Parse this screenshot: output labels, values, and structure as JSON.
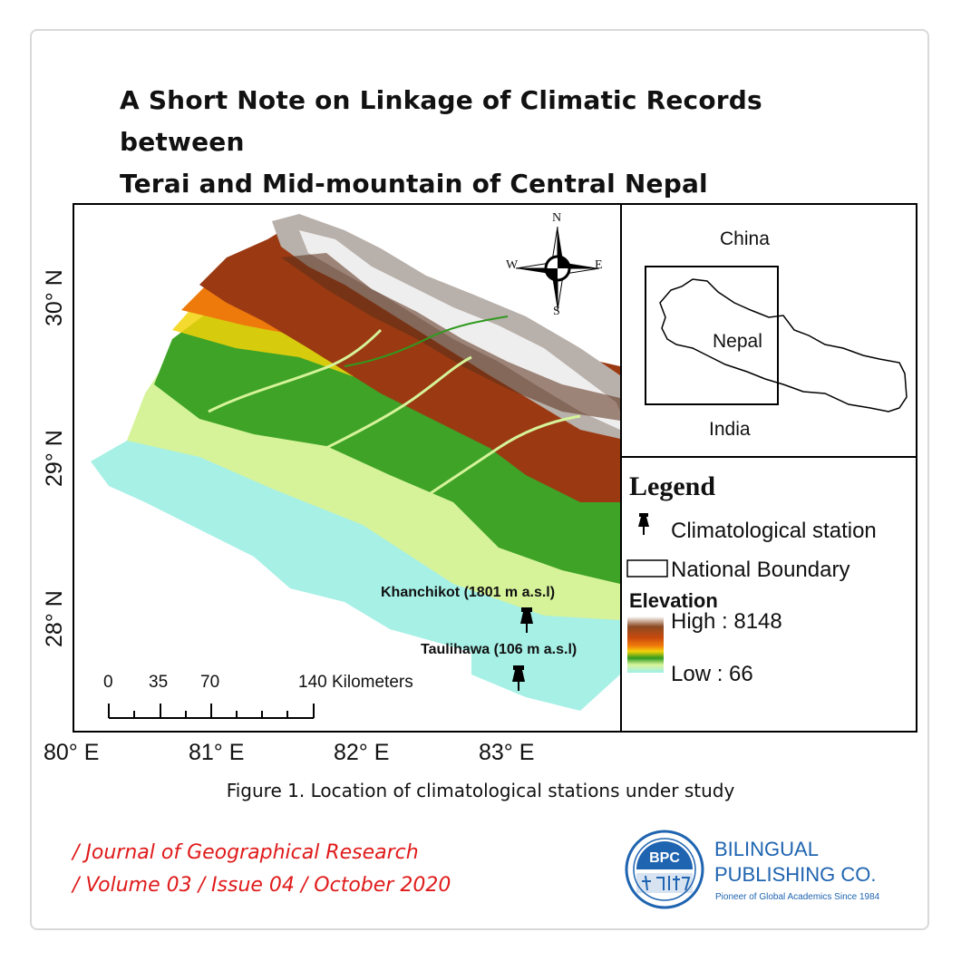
{
  "title": {
    "line1": "A Short Note on Linkage of Climatic Records between",
    "line2": "Terai and Mid-mountain of Central Nepal"
  },
  "map": {
    "longitude_labels": [
      "80° E",
      "81° E",
      "82° E",
      "83° E"
    ],
    "latitude_labels": [
      "30° N",
      "29° N",
      "28° N"
    ],
    "compass": {
      "n": "N",
      "s": "S",
      "e": "E",
      "w": "W"
    },
    "stations": [
      {
        "label": "Khanchikot (1801 m a.s.l)"
      },
      {
        "label": "Taulihawa (106 m a.s.l)"
      }
    ],
    "scale_bar": {
      "ticks": [
        "0",
        "35",
        "70",
        "140 Kilometers"
      ]
    },
    "elevation_colors": [
      "#4a2e1a",
      "#8b4a22",
      "#c84a0c",
      "#f07a0a",
      "#f2d20a",
      "#2f9a1f",
      "#8fd35a",
      "#e3f5a0",
      "#9fefea"
    ]
  },
  "inset": {
    "china": "China",
    "nepal": "Nepal",
    "india": "India"
  },
  "legend": {
    "title": "Legend",
    "station": "Climatological station",
    "boundary": "National Boundary",
    "elevation_title": "Elevation",
    "high": "High : 8148",
    "low": "Low : 66"
  },
  "caption": "Figure 1. Location of climatological stations under study",
  "journal": {
    "line1": "/ Journal of Geographical Research",
    "line2": "/ Volume 03 / Issue 04 / October 2020"
  },
  "publisher": {
    "badge": "BPC",
    "name_line1": "BILINGUAL",
    "name_line2": "PUBLISHING CO.",
    "tagline": "Pioneer of Global Academics Since 1984"
  }
}
